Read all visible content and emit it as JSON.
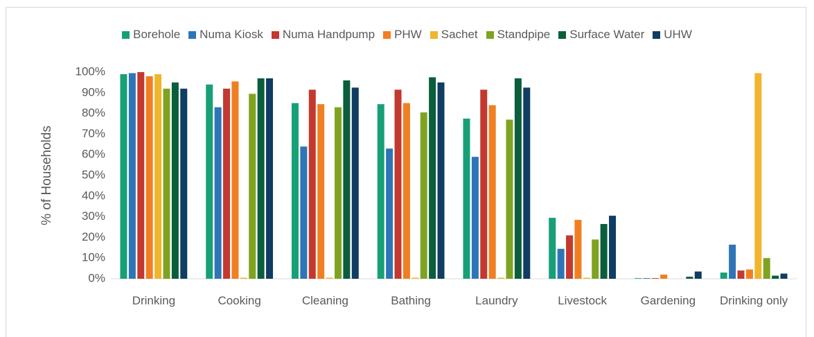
{
  "chart_data": {
    "type": "bar",
    "y_label": "% of Households",
    "categories": [
      "Drinking",
      "Cooking",
      "Cleaning",
      "Bathing",
      "Laundry",
      "Livestock",
      "Gardening",
      "Drinking only"
    ],
    "series": [
      {
        "name": "Borehole",
        "color": "#17a078",
        "values": [
          99,
          94,
          85,
          84.5,
          77.5,
          29.5,
          0.3,
          3
        ]
      },
      {
        "name": "Numa Kiosk",
        "color": "#2e75b6",
        "values": [
          99.5,
          83,
          64,
          63,
          59,
          14.5,
          0.3,
          16.5
        ]
      },
      {
        "name": "Numa Handpump",
        "color": "#c3392f",
        "values": [
          100,
          92,
          91.5,
          91.5,
          91.5,
          21,
          0.3,
          4
        ]
      },
      {
        "name": "PHW",
        "color": "#f07f22",
        "values": [
          98,
          95.5,
          84.5,
          85,
          84,
          28.5,
          2,
          4.5
        ]
      },
      {
        "name": "Sachet",
        "color": "#f0b52c",
        "values": [
          99,
          0.5,
          0.5,
          0.5,
          0.5,
          0.5,
          0,
          99.5
        ]
      },
      {
        "name": "Standpipe",
        "color": "#7fa321",
        "values": [
          92,
          89.5,
          83,
          80.5,
          77,
          19,
          0,
          10
        ]
      },
      {
        "name": "Surface Water",
        "color": "#0b5e3b",
        "values": [
          95,
          97,
          96,
          97.5,
          97,
          26.5,
          1,
          1.5
        ]
      },
      {
        "name": "UHW",
        "color": "#0f3d63",
        "values": [
          92,
          97,
          92.5,
          95,
          92.5,
          30.5,
          3.5,
          2.5
        ]
      }
    ],
    "ylim": [
      0,
      100
    ],
    "yticks": [
      {
        "value": 0,
        "label": "0%"
      },
      {
        "value": 10,
        "label": "10%"
      },
      {
        "value": 20,
        "label": "20%"
      },
      {
        "value": 30,
        "label": "30%"
      },
      {
        "value": 40,
        "label": "40%"
      },
      {
        "value": 50,
        "label": "50%"
      },
      {
        "value": 60,
        "label": "60%"
      },
      {
        "value": 70,
        "label": "70%"
      },
      {
        "value": 80,
        "label": "80%"
      },
      {
        "value": 90,
        "label": "90%"
      },
      {
        "value": 100,
        "label": "100%"
      }
    ],
    "grid": false,
    "legend": "top"
  }
}
